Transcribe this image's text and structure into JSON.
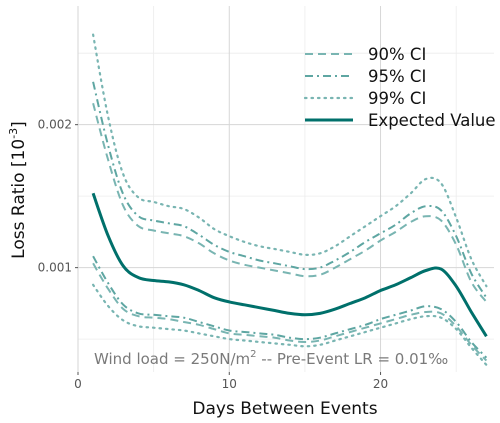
{
  "chart_data": {
    "type": "line",
    "xlabel": "Days Between Events",
    "ylabel": "Loss Ratio [10",
    "ylabel_exp": "-3",
    "ylabel_suffix": "]",
    "xlim": [
      0,
      27.5
    ],
    "ylim": [
      0.00027,
      0.00283
    ],
    "x_ticks": [
      0,
      10,
      20
    ],
    "x_tick_labels": [
      "0",
      "10",
      "20"
    ],
    "y_ticks": [
      0.001,
      0.002
    ],
    "y_tick_labels": [
      "0.001",
      "0.002"
    ],
    "grid": true,
    "legend_position": "top-right",
    "annotation": {
      "prefix": "Wind load = 250N/m",
      "exp": "2",
      "suffix": " -- Pre-Event LR = 0.01‰"
    },
    "x": [
      1,
      2,
      3,
      4,
      5,
      6,
      7,
      8,
      9,
      10,
      11,
      12,
      13,
      14,
      15,
      16,
      17,
      18,
      19,
      20,
      21,
      22,
      23,
      24,
      25,
      26,
      27
    ],
    "series": [
      {
        "name": "Expected Value",
        "style": "solid",
        "color": "#00706b",
        "values": [
          0.00152,
          0.00122,
          0.00101,
          0.00093,
          0.00091,
          0.0009,
          0.00088,
          0.00084,
          0.00079,
          0.00076,
          0.00074,
          0.00072,
          0.0007,
          0.00068,
          0.00067,
          0.00068,
          0.00071,
          0.00075,
          0.00079,
          0.00084,
          0.00088,
          0.00093,
          0.00098,
          0.00099,
          0.00087,
          0.00069,
          0.00052
        ]
      },
      {
        "name": "90% CI",
        "style": "dashed",
        "color": "#79b5b2",
        "values": [
          0.00215,
          0.00175,
          0.00143,
          0.00129,
          0.00126,
          0.00124,
          0.00122,
          0.00117,
          0.0011,
          0.00105,
          0.00102,
          0.001,
          0.00098,
          0.00096,
          0.00094,
          0.00095,
          0.001,
          0.00106,
          0.00112,
          0.00119,
          0.00125,
          0.00132,
          0.00136,
          0.00133,
          0.00116,
          0.0009,
          0.00076
        ]
      },
      {
        "name": "90% CI",
        "style": "dashed",
        "color": "#79b5b2",
        "values": [
          0.00103,
          0.00085,
          0.00071,
          0.00066,
          0.00065,
          0.00064,
          0.00062,
          0.0006,
          0.00057,
          0.00054,
          0.00053,
          0.00052,
          0.00051,
          0.00049,
          0.00048,
          0.00049,
          0.00052,
          0.00055,
          0.00058,
          0.00061,
          0.00064,
          0.00067,
          0.00069,
          0.00068,
          0.00059,
          0.00046,
          0.00035
        ]
      },
      {
        "name": "95% CI",
        "style": "dashdot",
        "color": "#5ea6a2",
        "values": [
          0.0023,
          0.00185,
          0.00151,
          0.00136,
          0.00133,
          0.00131,
          0.00129,
          0.00123,
          0.00116,
          0.00111,
          0.00108,
          0.00105,
          0.00103,
          0.00101,
          0.00099,
          0.001,
          0.00105,
          0.00111,
          0.00118,
          0.00124,
          0.0013,
          0.00138,
          0.00143,
          0.0014,
          0.00122,
          0.00096,
          0.00079
        ]
      },
      {
        "name": "95% CI",
        "style": "dashdot",
        "color": "#5ea6a2",
        "values": [
          0.00108,
          0.00089,
          0.00074,
          0.00068,
          0.00067,
          0.00066,
          0.00065,
          0.00062,
          0.00059,
          0.00056,
          0.00055,
          0.00054,
          0.00053,
          0.00051,
          0.0005,
          0.00051,
          0.00054,
          0.00057,
          0.0006,
          0.00064,
          0.00067,
          0.0007,
          0.00073,
          0.00071,
          0.00062,
          0.00048,
          0.00037
        ]
      },
      {
        "name": "99% CI",
        "style": "dotted",
        "color": "#79b5b2",
        "values": [
          0.00263,
          0.00205,
          0.00165,
          0.00149,
          0.00146,
          0.00143,
          0.00141,
          0.00135,
          0.00127,
          0.00122,
          0.00118,
          0.00115,
          0.00113,
          0.00111,
          0.00109,
          0.0011,
          0.00115,
          0.00122,
          0.00129,
          0.00136,
          0.00143,
          0.00152,
          0.00162,
          0.00159,
          0.00135,
          0.00106,
          0.00087
        ]
      },
      {
        "name": "99% CI",
        "style": "dotted",
        "color": "#79b5b2",
        "values": [
          0.00088,
          0.00073,
          0.00063,
          0.00059,
          0.00058,
          0.00057,
          0.00056,
          0.00054,
          0.00052,
          0.0005,
          0.00049,
          0.00048,
          0.00047,
          0.00046,
          0.00045,
          0.00046,
          0.00049,
          0.00052,
          0.00055,
          0.00058,
          0.00061,
          0.00064,
          0.00066,
          0.00065,
          0.00057,
          0.00044,
          0.00032
        ]
      }
    ],
    "legend": [
      {
        "label": "90% CI",
        "style": "dashed",
        "color": "#79b5b2"
      },
      {
        "label": "95% CI",
        "style": "dashdot",
        "color": "#5ea6a2"
      },
      {
        "label": "99% CI",
        "style": "dotted",
        "color": "#79b5b2"
      },
      {
        "label": "Expected Value",
        "style": "solid",
        "color": "#00706b"
      }
    ]
  }
}
